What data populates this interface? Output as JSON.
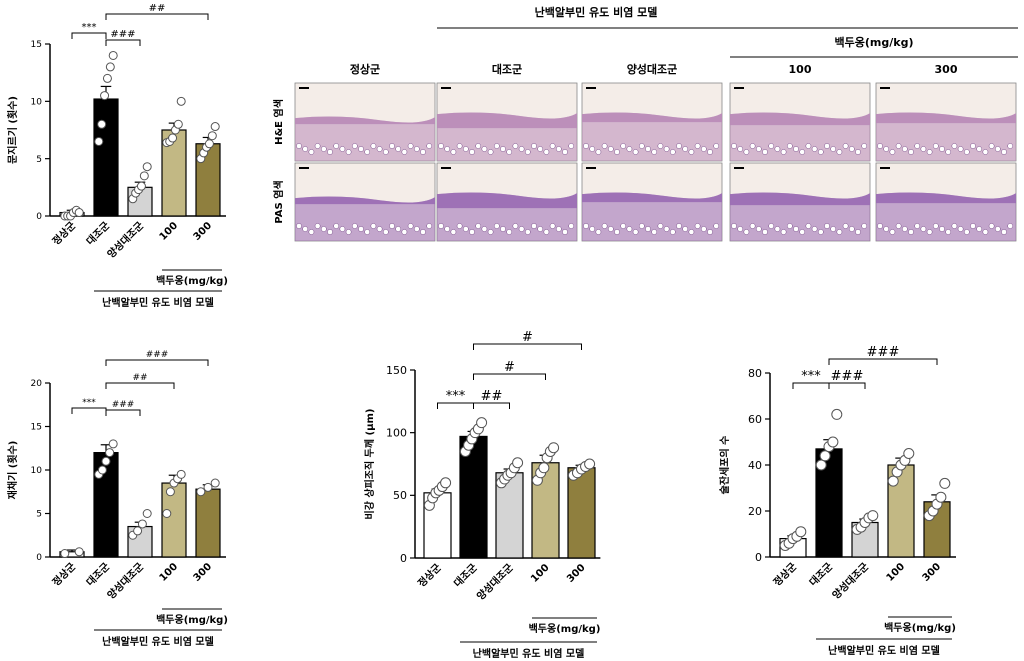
{
  "histology": {
    "group_header": "난백알부민 유도 비염 모델",
    "dose_header": "백두옹(mg/kg)",
    "columns": [
      "정상군",
      "대조군",
      "양성대조군",
      "100",
      "300"
    ],
    "rows": [
      "H&E 염색",
      "PAS 염색"
    ],
    "colors": {
      "he_tissue": "#b98bb8",
      "pas_tissue": "#9a6bb4",
      "bg": "#f4ede8"
    }
  },
  "chart_data": [
    {
      "type": "bar",
      "categories": [
        "정상군",
        "대조군",
        "양성대조군",
        "100",
        "300"
      ],
      "values": [
        0.3,
        10.2,
        2.5,
        7.5,
        6.3
      ],
      "errors": [
        0.2,
        1.1,
        0.45,
        0.6,
        0.55
      ],
      "points": [
        [
          0,
          0,
          0,
          0.3,
          0.5,
          0.3
        ],
        [
          6.5,
          8,
          10.5,
          12,
          13,
          14
        ],
        [
          1.5,
          2,
          2.3,
          2.6,
          3.5,
          4.3
        ],
        [
          6.4,
          6.5,
          6.8,
          7.5,
          8,
          10
        ],
        [
          5,
          5.5,
          6,
          6.3,
          7,
          7.8
        ]
      ],
      "colors": [
        "#ffffff",
        "#000000",
        "#d4d4d4",
        "#c2b884",
        "#8f7f3e"
      ],
      "ylabel": "문지르기 (횟수)",
      "ylim": [
        0,
        15
      ],
      "yticks": [
        0,
        5,
        10,
        15
      ],
      "dose_label": "백두옹(mg/kg)",
      "group_label": "난백알부민 유도 비염 모델",
      "significance": [
        {
          "from": 0,
          "to": 1,
          "label": "***"
        },
        {
          "from": 1,
          "to": 2,
          "label": "###"
        },
        {
          "from": 1,
          "to": 4,
          "label": "##"
        }
      ]
    },
    {
      "type": "bar",
      "categories": [
        "정상군",
        "대조군",
        "양성대조군",
        "100",
        "300"
      ],
      "values": [
        0.6,
        12.0,
        3.5,
        8.5,
        7.8
      ],
      "errors": [
        0.2,
        0.9,
        0.5,
        0.9,
        0.5
      ],
      "points": [
        [
          0.4,
          0.6
        ],
        [
          9.5,
          10,
          11,
          12,
          13
        ],
        [
          2.5,
          3,
          3.8,
          5
        ],
        [
          5,
          7.5,
          8.5,
          9,
          9.5
        ],
        [
          7.5,
          8,
          8.5
        ]
      ],
      "colors": [
        "#ffffff",
        "#000000",
        "#d4d4d4",
        "#c2b884",
        "#8f7f3e"
      ],
      "ylabel": "재채기 (횟수)",
      "ylim": [
        0,
        20
      ],
      "yticks": [
        0,
        5,
        10,
        15,
        20
      ],
      "dose_label": "백두옹(mg/kg)",
      "group_label": "난백알부민 유도 비염 모델",
      "significance": [
        {
          "from": 0,
          "to": 1,
          "label": "***"
        },
        {
          "from": 1,
          "to": 2,
          "label": "###"
        },
        {
          "from": 1,
          "to": 3,
          "label": "##"
        },
        {
          "from": 1,
          "to": 4,
          "label": "###"
        }
      ]
    },
    {
      "type": "bar",
      "categories": [
        "정상군",
        "대조군",
        "양성대조군",
        "100",
        "300"
      ],
      "values": [
        52,
        97,
        68,
        76,
        72
      ],
      "errors": [
        3,
        4,
        3,
        6,
        2
      ],
      "points": [
        [
          42,
          48,
          52,
          54,
          57,
          60
        ],
        [
          85,
          90,
          95,
          100,
          103,
          108
        ],
        [
          60,
          63,
          66,
          68,
          72,
          76
        ],
        [
          62,
          68,
          72,
          80,
          85,
          88
        ],
        [
          66,
          68,
          71,
          73,
          75
        ]
      ],
      "colors": [
        "#ffffff",
        "#000000",
        "#d4d4d4",
        "#c2b884",
        "#8f7f3e"
      ],
      "ylabel": "비강 상피조직 두께 (μm)",
      "ylim": [
        0,
        150
      ],
      "yticks": [
        0,
        50,
        100,
        150
      ],
      "dose_label": "백두옹(mg/kg)",
      "group_label": "난백알부민 유도 비염 모델",
      "significance": [
        {
          "from": 0,
          "to": 1,
          "label": "***"
        },
        {
          "from": 1,
          "to": 2,
          "label": "##"
        },
        {
          "from": 1,
          "to": 3,
          "label": "#"
        },
        {
          "from": 1,
          "to": 4,
          "label": "#"
        }
      ]
    },
    {
      "type": "bar",
      "categories": [
        "정상군",
        "대조군",
        "양성대조군",
        "100",
        "300"
      ],
      "values": [
        8,
        47,
        15,
        40,
        24
      ],
      "errors": [
        1.2,
        4,
        1.5,
        3,
        3
      ],
      "points": [
        [
          5,
          6,
          8,
          9,
          11
        ],
        [
          40,
          44,
          48,
          50,
          62
        ],
        [
          12,
          13,
          15,
          17,
          18
        ],
        [
          33,
          37,
          40,
          42,
          45
        ],
        [
          18,
          20,
          23,
          26,
          32
        ]
      ],
      "colors": [
        "#ffffff",
        "#000000",
        "#d4d4d4",
        "#c2b884",
        "#8f7f3e"
      ],
      "ylabel": "술잔세포의 수",
      "ylim": [
        0,
        80
      ],
      "yticks": [
        0,
        20,
        40,
        60,
        80
      ],
      "dose_label": "백두옹(mg/kg)",
      "group_label": "난백알부민 유도 비염 모델",
      "significance": [
        {
          "from": 0,
          "to": 1,
          "label": "***"
        },
        {
          "from": 1,
          "to": 2,
          "label": "###"
        },
        {
          "from": 1,
          "to": 4,
          "label": "###"
        }
      ]
    }
  ]
}
